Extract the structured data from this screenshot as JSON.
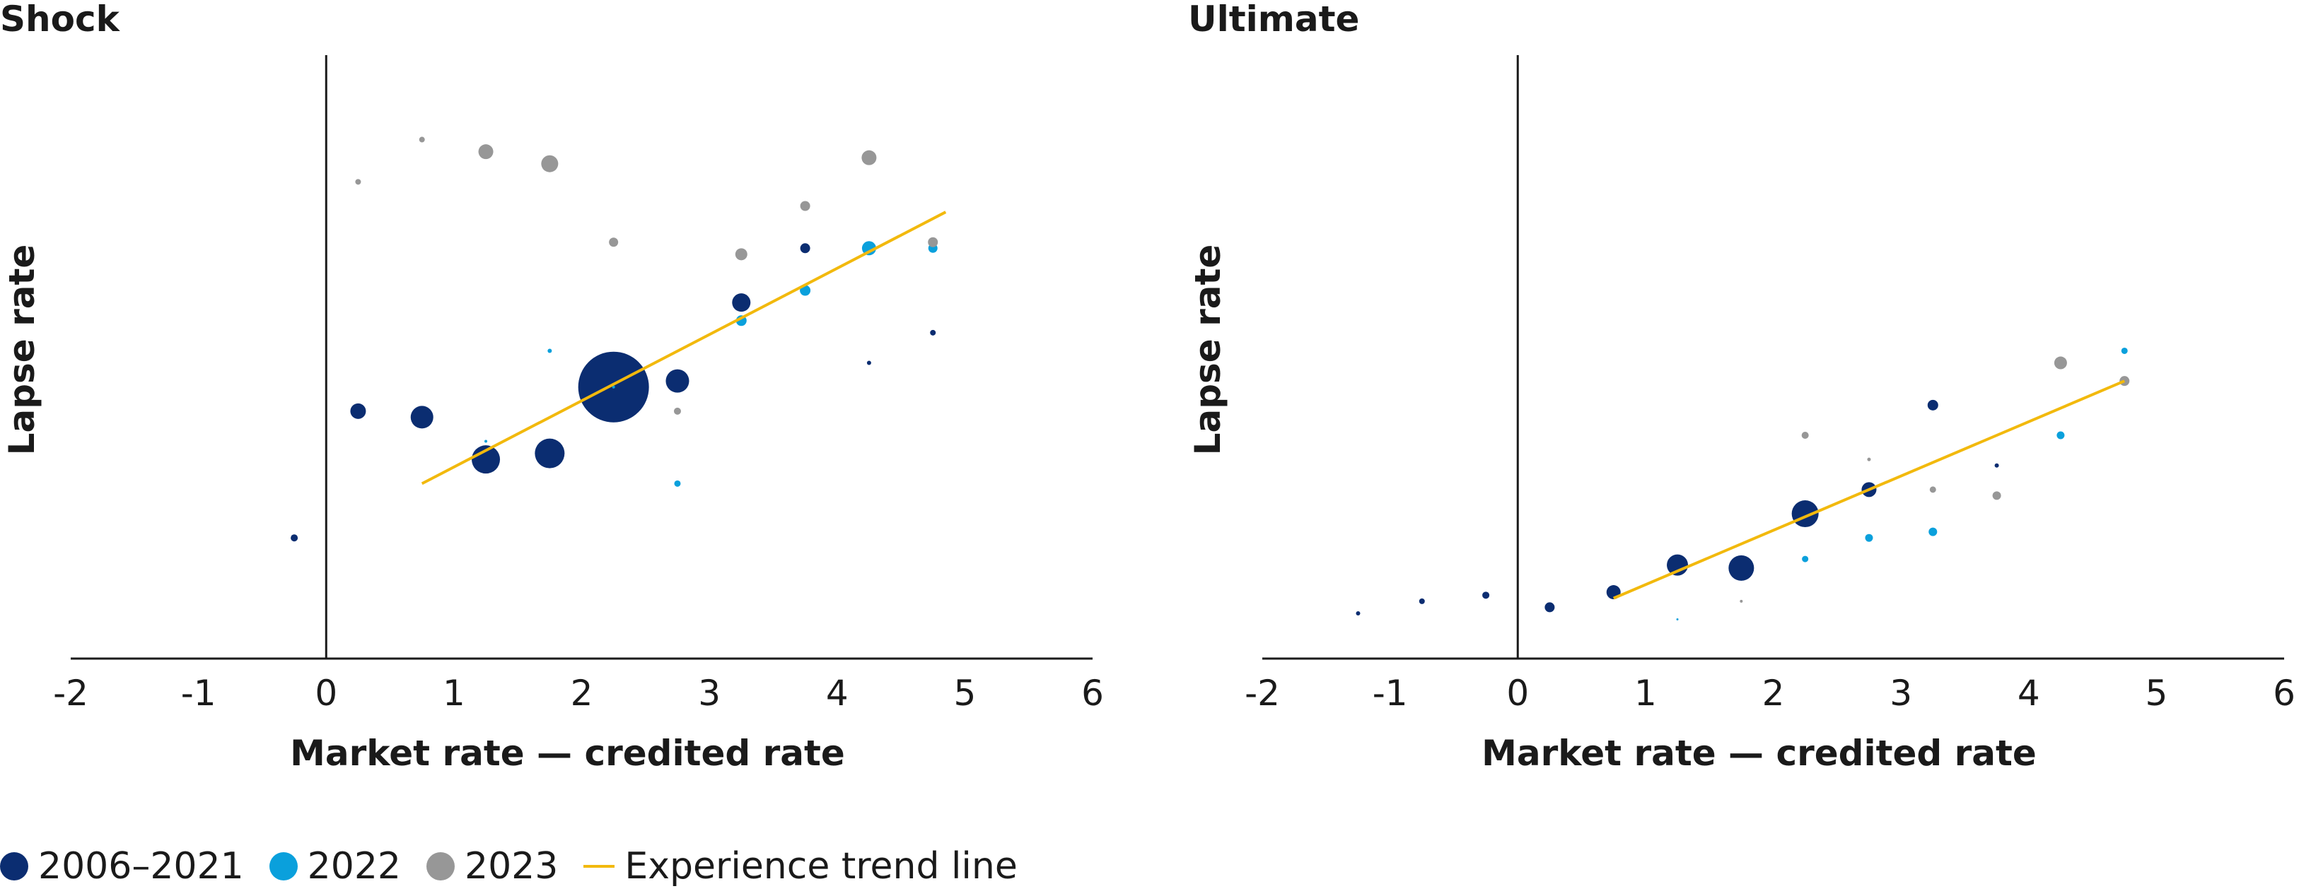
{
  "colors": {
    "2006–2021": "#0b2d71",
    "2022": "#0aa0dc",
    "2023": "#979797",
    "trend": "#f2b90d",
    "axis": "#1a1a1a"
  },
  "legend": {
    "items": [
      {
        "label": "2006–2021",
        "key": "2006–2021",
        "kind": "dot"
      },
      {
        "label": "2022",
        "key": "2022",
        "kind": "dot"
      },
      {
        "label": "2023",
        "key": "2023",
        "kind": "dot"
      },
      {
        "label": "Experience trend line",
        "key": "trend",
        "kind": "line"
      }
    ]
  },
  "chart_data": [
    {
      "type": "scatter",
      "title": "Shock",
      "xlabel": "Market rate — credited rate",
      "ylabel": "Lapse rate",
      "xlim": [
        -2,
        6
      ],
      "ylim": [
        0,
        10
      ],
      "xticks": [
        "-2",
        "-1",
        "0",
        "1",
        "2",
        "3",
        "4",
        "5",
        "6"
      ],
      "yticks_shown": false,
      "series": [
        {
          "key": "2006–2021",
          "points": [
            {
              "x": -0.25,
              "y": 2.0,
              "size": 10
            },
            {
              "x": 0.25,
              "y": 4.1,
              "size": 22
            },
            {
              "x": 0.75,
              "y": 4.0,
              "size": 32
            },
            {
              "x": 1.25,
              "y": 3.3,
              "size": 40
            },
            {
              "x": 1.75,
              "y": 3.4,
              "size": 42
            },
            {
              "x": 2.25,
              "y": 4.5,
              "size": 100
            },
            {
              "x": 2.75,
              "y": 4.6,
              "size": 33
            },
            {
              "x": 3.25,
              "y": 5.9,
              "size": 26
            },
            {
              "x": 3.75,
              "y": 6.8,
              "size": 14
            },
            {
              "x": 4.25,
              "y": 4.9,
              "size": 6
            },
            {
              "x": 4.75,
              "y": 5.4,
              "size": 8
            }
          ]
        },
        {
          "key": "2022",
          "points": [
            {
              "x": 1.25,
              "y": 3.6,
              "size": 4
            },
            {
              "x": 1.75,
              "y": 5.1,
              "size": 6
            },
            {
              "x": 2.25,
              "y": 4.5,
              "size": 4
            },
            {
              "x": 2.75,
              "y": 2.9,
              "size": 9
            },
            {
              "x": 3.25,
              "y": 5.6,
              "size": 15
            },
            {
              "x": 3.75,
              "y": 6.1,
              "size": 15
            },
            {
              "x": 4.25,
              "y": 6.8,
              "size": 20
            },
            {
              "x": 4.75,
              "y": 6.8,
              "size": 13
            }
          ]
        },
        {
          "key": "2023",
          "points": [
            {
              "x": 0.25,
              "y": 7.9,
              "size": 8
            },
            {
              "x": 0.75,
              "y": 8.6,
              "size": 8
            },
            {
              "x": 1.25,
              "y": 8.4,
              "size": 21
            },
            {
              "x": 1.75,
              "y": 8.2,
              "size": 24
            },
            {
              "x": 2.25,
              "y": 6.9,
              "size": 13
            },
            {
              "x": 2.75,
              "y": 4.1,
              "size": 10
            },
            {
              "x": 3.25,
              "y": 6.7,
              "size": 17
            },
            {
              "x": 3.75,
              "y": 7.5,
              "size": 14
            },
            {
              "x": 4.25,
              "y": 8.3,
              "size": 21
            },
            {
              "x": 4.75,
              "y": 6.9,
              "size": 14
            }
          ]
        }
      ],
      "trend": {
        "from": {
          "x": 0.75,
          "y": 2.9
        },
        "to": {
          "x": 4.85,
          "y": 7.4
        }
      }
    },
    {
      "type": "scatter",
      "title": "Ultimate",
      "xlabel": "Market rate — credited rate",
      "ylabel": "Lapse rate",
      "xlim": [
        -2,
        6
      ],
      "ylim": [
        0,
        10
      ],
      "xticks": [
        "-2",
        "-1",
        "0",
        "1",
        "2",
        "3",
        "4",
        "5",
        "6"
      ],
      "yticks_shown": false,
      "series": [
        {
          "key": "2006–2021",
          "points": [
            {
              "x": -1.25,
              "y": 0.75,
              "size": 6
            },
            {
              "x": -0.75,
              "y": 0.95,
              "size": 8
            },
            {
              "x": -0.25,
              "y": 1.05,
              "size": 10
            },
            {
              "x": 0.25,
              "y": 0.85,
              "size": 14
            },
            {
              "x": 0.75,
              "y": 1.1,
              "size": 20
            },
            {
              "x": 1.25,
              "y": 1.55,
              "size": 30
            },
            {
              "x": 1.75,
              "y": 1.5,
              "size": 36
            },
            {
              "x": 2.25,
              "y": 2.4,
              "size": 38
            },
            {
              "x": 2.75,
              "y": 2.8,
              "size": 21
            },
            {
              "x": 3.25,
              "y": 4.2,
              "size": 15
            },
            {
              "x": 3.75,
              "y": 3.2,
              "size": 6
            }
          ]
        },
        {
          "key": "2022",
          "points": [
            {
              "x": 1.25,
              "y": 0.65,
              "size": 3
            },
            {
              "x": 1.75,
              "y": 0.95,
              "size": 3
            },
            {
              "x": 2.25,
              "y": 1.65,
              "size": 9
            },
            {
              "x": 2.75,
              "y": 2.0,
              "size": 11
            },
            {
              "x": 3.25,
              "y": 2.1,
              "size": 12
            },
            {
              "x": 4.25,
              "y": 3.7,
              "size": 11
            },
            {
              "x": 4.75,
              "y": 5.1,
              "size": 9
            }
          ]
        },
        {
          "key": "2023",
          "points": [
            {
              "x": 1.75,
              "y": 0.95,
              "size": 4
            },
            {
              "x": 2.25,
              "y": 3.7,
              "size": 10
            },
            {
              "x": 2.75,
              "y": 3.3,
              "size": 5
            },
            {
              "x": 3.25,
              "y": 2.8,
              "size": 9
            },
            {
              "x": 3.75,
              "y": 2.7,
              "size": 12
            },
            {
              "x": 4.25,
              "y": 4.9,
              "size": 18
            },
            {
              "x": 4.75,
              "y": 4.6,
              "size": 14
            }
          ]
        }
      ],
      "trend": {
        "from": {
          "x": 0.75,
          "y": 1.0
        },
        "to": {
          "x": 4.75,
          "y": 4.6
        }
      }
    }
  ]
}
